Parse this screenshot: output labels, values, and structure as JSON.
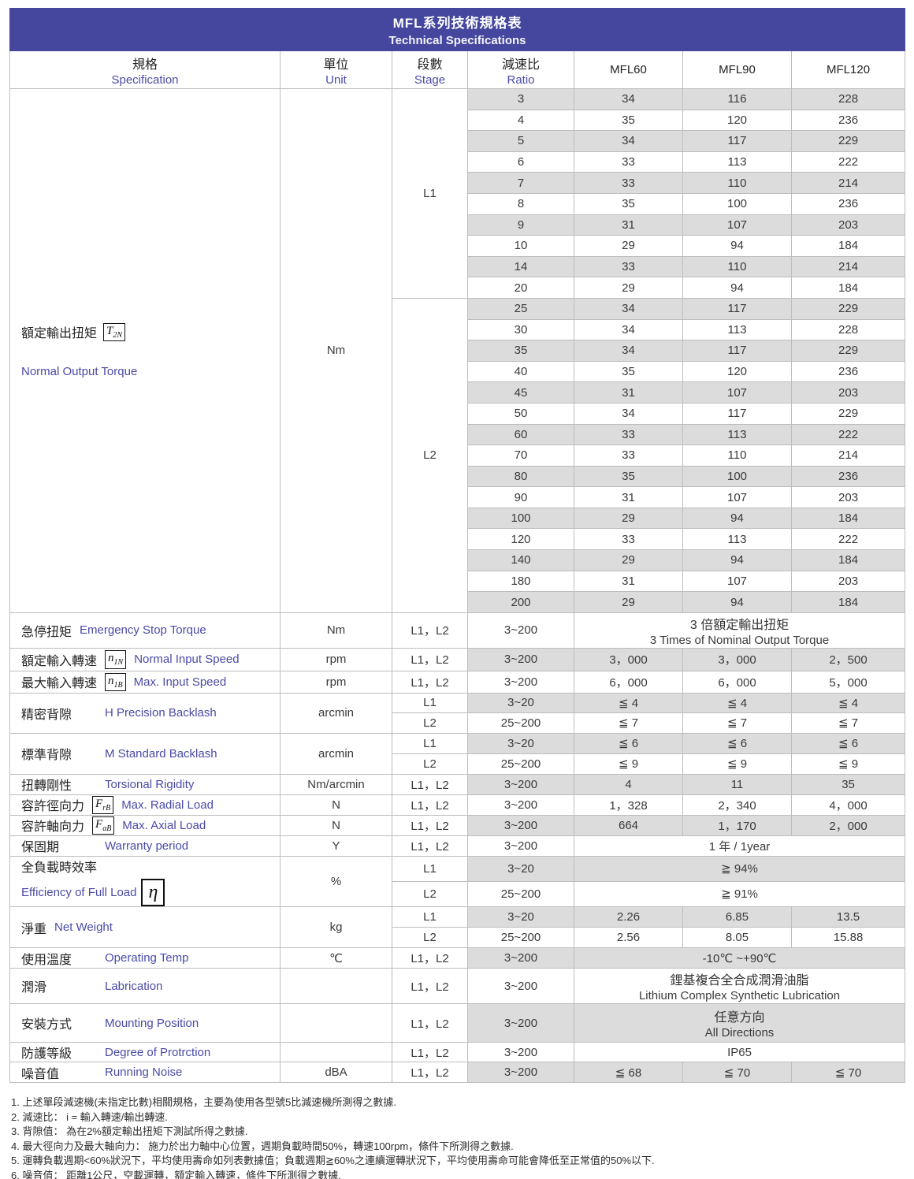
{
  "title": {
    "zh": "MFL系列技術規格表",
    "en": "Technical Specifications"
  },
  "header": {
    "spec": {
      "zh": "規格",
      "en": "Specification"
    },
    "unit": {
      "zh": "單位",
      "en": "Unit"
    },
    "stage": {
      "zh": "段數",
      "en": "Stage"
    },
    "ratio": {
      "zh": "減速比",
      "en": "Ratio"
    },
    "models": [
      "MFL60",
      "MFL90",
      "MFL120"
    ]
  },
  "torque": {
    "label_zh": "額定輸出扭矩",
    "symbol": {
      "base": "T",
      "sub": "2N"
    },
    "label_en": "Normal Output Torque",
    "unit": "Nm",
    "blocks": [
      {
        "stage": "L1",
        "rows": [
          [
            3,
            34,
            116,
            228
          ],
          [
            4,
            35,
            120,
            236
          ],
          [
            5,
            34,
            117,
            229
          ],
          [
            6,
            33,
            113,
            222
          ],
          [
            7,
            33,
            110,
            214
          ],
          [
            8,
            35,
            100,
            236
          ],
          [
            9,
            31,
            107,
            203
          ],
          [
            10,
            29,
            94,
            184
          ],
          [
            14,
            33,
            110,
            214
          ],
          [
            20,
            29,
            94,
            184
          ]
        ]
      },
      {
        "stage": "L2",
        "rows": [
          [
            25,
            34,
            117,
            229
          ],
          [
            30,
            34,
            113,
            228
          ],
          [
            35,
            34,
            117,
            229
          ],
          [
            40,
            35,
            120,
            236
          ],
          [
            45,
            31,
            107,
            203
          ],
          [
            50,
            34,
            117,
            229
          ],
          [
            60,
            33,
            113,
            222
          ],
          [
            70,
            33,
            110,
            214
          ],
          [
            80,
            35,
            100,
            236
          ],
          [
            90,
            31,
            107,
            203
          ],
          [
            100,
            29,
            94,
            184
          ],
          [
            120,
            33,
            113,
            222
          ],
          [
            140,
            29,
            94,
            184
          ],
          [
            180,
            31,
            107,
            203
          ],
          [
            200,
            29,
            94,
            184
          ]
        ]
      }
    ]
  },
  "spec_rows": [
    {
      "id": "emergency",
      "zh": "急停扭矩",
      "en": "Emergency Stop Torque",
      "unit": "Nm",
      "subrows": [
        {
          "stage": "L1，L2",
          "ratio": "3~200",
          "span": {
            "zh": "3 倍額定輸出扭矩",
            "en": "3 Times of Nominal Output Torque"
          }
        }
      ]
    },
    {
      "id": "normal-input",
      "zh": "額定輸入轉速",
      "symbol": {
        "base": "n",
        "sub": "1N"
      },
      "en": "Normal Input Speed",
      "unit": "rpm",
      "subrows": [
        {
          "stage": "L1，L2",
          "ratio": "3~200",
          "values": [
            "3，000",
            "3，000",
            "2，500"
          ]
        }
      ]
    },
    {
      "id": "max-input",
      "zh": "最大輸入轉速",
      "symbol": {
        "base": "n",
        "sub": "1B"
      },
      "en": "Max. Input Speed",
      "unit": "rpm",
      "subrows": [
        {
          "stage": "L1，L2",
          "ratio": "3~200",
          "values": [
            "6，000",
            "6，000",
            "5，000"
          ]
        }
      ]
    },
    {
      "id": "precision-backlash",
      "zh": "精密背隙",
      "en": "H  Precision Backlash",
      "unit": "arcmin",
      "subrows": [
        {
          "stage": "L1",
          "ratio": "3~20",
          "values": [
            "≦ 4",
            "≦ 4",
            "≦ 4"
          ]
        },
        {
          "stage": "L2",
          "ratio": "25~200",
          "values": [
            "≦ 7",
            "≦ 7",
            "≦ 7"
          ]
        }
      ]
    },
    {
      "id": "standard-backlash",
      "zh": "標準背隙",
      "en": "M  Standard Backlash",
      "unit": "arcmin",
      "subrows": [
        {
          "stage": "L1",
          "ratio": "3~20",
          "values": [
            "≦ 6",
            "≦ 6",
            "≦ 6"
          ]
        },
        {
          "stage": "L2",
          "ratio": "25~200",
          "values": [
            "≦ 9",
            "≦ 9",
            "≦ 9"
          ]
        }
      ]
    },
    {
      "id": "torsional-rigidity",
      "zh": "扭轉剛性",
      "en": "Torsional Rigidity",
      "unit": "Nm/arcmin",
      "subrows": [
        {
          "stage": "L1，L2",
          "ratio": "3~200",
          "values": [
            "4",
            "11",
            "35"
          ]
        }
      ]
    },
    {
      "id": "radial-load",
      "zh": "容許徑向力",
      "symbol": {
        "base": "F",
        "sub": "rB"
      },
      "en": "Max. Radial Load",
      "unit": "N",
      "subrows": [
        {
          "stage": "L1，L2",
          "ratio": "3~200",
          "values": [
            "1，328",
            "2，340",
            "4，000"
          ]
        }
      ]
    },
    {
      "id": "axial-load",
      "zh": "容許軸向力",
      "symbol": {
        "base": "F",
        "sub": "aB"
      },
      "en": "Max. Axial Load",
      "unit": "N",
      "subrows": [
        {
          "stage": "L1，L2",
          "ratio": "3~200",
          "values": [
            "664",
            "1，170",
            "2，000"
          ]
        }
      ]
    },
    {
      "id": "warranty",
      "zh": "保固期",
      "en": "Warranty period",
      "unit": "Y",
      "subrows": [
        {
          "stage": "L1，L2",
          "ratio": "3~200",
          "span": {
            "zh": "1 年  / 1year"
          }
        }
      ]
    },
    {
      "id": "efficiency",
      "zh": "全負載時效率",
      "en": "Efficiency of Full Load",
      "symbol": {
        "base": "η",
        "sub": "",
        "thick": true
      },
      "two_line": true,
      "unit": "%",
      "subrows": [
        {
          "stage": "L1",
          "ratio": "3~20",
          "span": {
            "zh": "≧ 94%"
          }
        },
        {
          "stage": "L2",
          "ratio": "25~200",
          "span": {
            "zh": "≧ 91%"
          }
        }
      ]
    },
    {
      "id": "net-weight",
      "zh": "淨重",
      "en": "Net Weight",
      "unit": "kg",
      "subrows": [
        {
          "stage": "L1",
          "ratio": "3~20",
          "values": [
            "2.26",
            "6.85",
            "13.5"
          ]
        },
        {
          "stage": "L2",
          "ratio": "25~200",
          "values": [
            "2.56",
            "8.05",
            "15.88"
          ]
        }
      ]
    },
    {
      "id": "operating-temp",
      "zh": "使用溫度",
      "en": "Operating Temp",
      "unit": "℃",
      "subrows": [
        {
          "stage": "L1，L2",
          "ratio": "3~200",
          "span": {
            "zh": "-10℃ ~+90℃"
          }
        }
      ]
    },
    {
      "id": "lubrication",
      "zh": "潤滑",
      "en": "Labrication",
      "unit": "",
      "subrows": [
        {
          "stage": "L1，L2",
          "ratio": "3~200",
          "span": {
            "zh": "鋰基複合全合成潤滑油脂",
            "en": "Lithium Complex Synthetic Lubrication"
          }
        }
      ]
    },
    {
      "id": "mounting",
      "zh": "安裝方式",
      "en": "Mounting Position",
      "unit": "",
      "subrows": [
        {
          "stage": "L1，L2",
          "ratio": "3~200",
          "span": {
            "zh": "任意方向",
            "en": "All Directions"
          }
        }
      ]
    },
    {
      "id": "protection",
      "zh": "防護等級",
      "en": "Degree of Protrction",
      "unit": "",
      "subrows": [
        {
          "stage": "L1，L2",
          "ratio": "3~200",
          "span": {
            "zh": "IP65"
          }
        }
      ]
    },
    {
      "id": "noise",
      "zh": "噪音值",
      "en": "Running Noise",
      "unit": "dBA",
      "subrows": [
        {
          "stage": "L1，L2",
          "ratio": "3~200",
          "values": [
            "≦ 68",
            "≦ 70",
            "≦ 70"
          ]
        }
      ]
    }
  ],
  "footnotes": [
    "1. 上述單段減速機(未指定比數)相關規格，主要為使用各型號5比減速機所測得之數據.",
    "2. 減速比： i = 輸入轉速/輸出轉速.",
    "3. 背隙值： 為在2%額定輸出扭矩下測試所得之數據.",
    "4. 最大徑向力及最大軸向力： 施力於出力軸中心位置，週期負載時間50%，轉速100rpm，條件下所測得之數據.",
    "5. 運轉負載週期<60%狀況下，平均使用壽命如列表數據值；負載週期≧60%之連續運轉狀況下，平均使用壽命可能會降低至正常值的50%以下.",
    "6. 噪音值： 距離1公尺，空載運轉，額定輸入轉速，條件下所測得之數據."
  ],
  "colors": {
    "title_band": "#44479d",
    "english_label": "#4a4aa8",
    "zebra": "#dcdcdc",
    "grid": "#bdbdbd"
  }
}
